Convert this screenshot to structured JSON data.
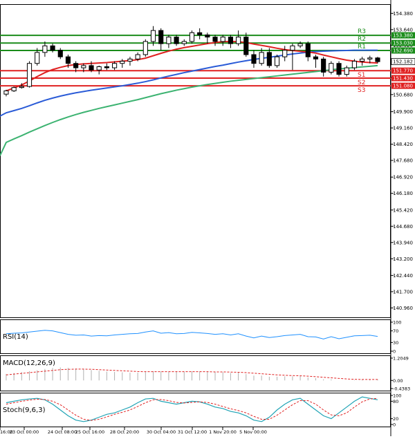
{
  "chart_data": {
    "type": "candlestick",
    "main": {
      "ylim": [
        140.5,
        154.8
      ],
      "y_ticks": [
        "154.380",
        "153.640",
        "152.920",
        "152.182",
        "151.460",
        "150.680",
        "149.900",
        "149.160",
        "148.420",
        "147.680",
        "146.920",
        "146.180",
        "145.420",
        "144.680",
        "143.940",
        "143.200",
        "142.440",
        "141.700",
        "140.960"
      ],
      "x_ticks": [
        "16:00",
        "23 Oct 00:00",
        "24 Oct 08:00",
        "25 Oct 16:00",
        "28 Oct 20:00",
        "30 Oct 04:00",
        "31 Oct 12:00",
        "1 Nov 20:00",
        "5 Nov 00:00"
      ],
      "current_price": "152.182",
      "levels": [
        {
          "label": "R3",
          "value": 153.38,
          "price_tag": "153.380",
          "color": "#1a8c1a"
        },
        {
          "label": "R2",
          "value": 153.03,
          "price_tag": "153.030",
          "color": "#1a8c1a"
        },
        {
          "label": "R1",
          "value": 152.69,
          "price_tag": "152.690",
          "color": "#1a8c1a"
        },
        {
          "label": "S1",
          "value": 151.77,
          "price_tag": "151.770",
          "color": "#e02020"
        },
        {
          "label": "S2",
          "value": 151.43,
          "price_tag": "151.430",
          "color": "#e02020"
        },
        {
          "label": "S3",
          "value": 151.08,
          "price_tag": "151.080",
          "color": "#e02020"
        }
      ],
      "candles": [
        [
          150.7,
          150.9,
          150.6,
          150.85
        ],
        [
          150.85,
          151.05,
          150.8,
          151.0
        ],
        [
          151.0,
          151.2,
          150.95,
          151.05
        ],
        [
          151.05,
          152.2,
          151.0,
          152.1
        ],
        [
          152.1,
          152.8,
          152.0,
          152.6
        ],
        [
          152.6,
          153.1,
          152.4,
          152.9
        ],
        [
          152.9,
          153.0,
          152.6,
          152.7
        ],
        [
          152.7,
          152.8,
          152.3,
          152.4
        ],
        [
          152.4,
          152.5,
          151.9,
          152.1
        ],
        [
          152.1,
          152.2,
          151.7,
          151.9
        ],
        [
          151.9,
          152.1,
          151.7,
          152.0
        ],
        [
          152.0,
          152.2,
          151.7,
          151.8
        ],
        [
          151.8,
          152.0,
          151.6,
          151.95
        ],
        [
          151.95,
          152.1,
          151.8,
          151.9
        ],
        [
          151.9,
          152.2,
          151.8,
          152.1
        ],
        [
          152.1,
          152.3,
          151.9,
          152.2
        ],
        [
          152.2,
          152.4,
          152.0,
          152.3
        ],
        [
          152.3,
          152.6,
          152.2,
          152.5
        ],
        [
          152.5,
          153.2,
          152.4,
          153.1
        ],
        [
          153.1,
          153.8,
          152.9,
          153.6
        ],
        [
          153.6,
          153.7,
          152.7,
          153.0
        ],
        [
          153.0,
          153.4,
          152.8,
          153.3
        ],
        [
          153.3,
          153.4,
          152.9,
          153.0
        ],
        [
          153.0,
          153.2,
          152.9,
          153.1
        ],
        [
          153.1,
          153.6,
          153.0,
          153.5
        ],
        [
          153.5,
          153.7,
          153.2,
          153.4
        ],
        [
          153.4,
          153.5,
          153.0,
          153.3
        ],
        [
          153.3,
          153.4,
          152.9,
          153.1
        ],
        [
          153.1,
          153.4,
          152.9,
          153.3
        ],
        [
          153.3,
          153.4,
          152.8,
          153.0
        ],
        [
          153.0,
          153.6,
          152.9,
          153.3
        ],
        [
          153.3,
          153.5,
          152.4,
          152.5
        ],
        [
          152.5,
          152.7,
          151.9,
          152.1
        ],
        [
          152.1,
          152.8,
          152.0,
          152.6
        ],
        [
          152.6,
          152.8,
          151.9,
          152.0
        ],
        [
          152.0,
          152.5,
          151.9,
          152.4
        ],
        [
          152.4,
          152.9,
          152.2,
          152.7
        ],
        [
          152.7,
          153.0,
          151.8,
          152.9
        ],
        [
          152.9,
          153.1,
          152.8,
          153.0
        ],
        [
          153.0,
          153.1,
          152.2,
          152.4
        ],
        [
          152.4,
          152.5,
          151.9,
          152.3
        ],
        [
          152.3,
          152.4,
          151.5,
          151.7
        ],
        [
          151.7,
          152.2,
          151.6,
          152.1
        ],
        [
          152.1,
          152.2,
          151.5,
          151.6
        ],
        [
          151.6,
          152.0,
          151.5,
          151.9
        ],
        [
          151.9,
          152.3,
          151.8,
          152.2
        ],
        [
          152.2,
          152.4,
          152.0,
          152.3
        ],
        [
          152.3,
          152.45,
          152.1,
          152.35
        ],
        [
          152.35,
          152.4,
          152.1,
          152.18
        ]
      ],
      "ma_fast": [
        150.85,
        150.98,
        151.12,
        151.3,
        151.5,
        151.68,
        151.82,
        151.92,
        152.0,
        152.05,
        152.08,
        152.1,
        152.12,
        152.14,
        152.17,
        152.2,
        152.23,
        152.27,
        152.34,
        152.45,
        152.56,
        152.66,
        152.75,
        152.82,
        152.88,
        152.94,
        153.0,
        153.05,
        153.09,
        153.1,
        153.09,
        153.05,
        152.98,
        152.92,
        152.86,
        152.79,
        152.73,
        152.69,
        152.65,
        152.62,
        152.57,
        152.48,
        152.4,
        152.32,
        152.25,
        152.2,
        152.16,
        152.14,
        152.12
      ],
      "ma_mid": [
        149.85,
        149.95,
        150.05,
        150.17,
        150.3,
        150.42,
        150.52,
        150.61,
        150.69,
        150.76,
        150.82,
        150.88,
        150.93,
        150.98,
        151.03,
        151.08,
        151.14,
        151.2,
        151.27,
        151.35,
        151.44,
        151.52,
        151.6,
        151.68,
        151.75,
        151.82,
        151.89,
        151.96,
        152.02,
        152.09,
        152.16,
        152.22,
        152.28,
        152.33,
        152.38,
        152.43,
        152.48,
        152.53,
        152.57,
        152.61,
        152.64,
        152.66,
        152.67,
        152.68,
        152.69,
        152.7,
        152.7,
        152.7,
        152.7
      ],
      "ma_slow": [
        148.5,
        148.66,
        148.81,
        148.97,
        149.12,
        149.27,
        149.41,
        149.54,
        149.66,
        149.77,
        149.87,
        149.96,
        150.05,
        150.13,
        150.21,
        150.29,
        150.37,
        150.45,
        150.54,
        150.63,
        150.72,
        150.8,
        150.88,
        150.95,
        151.02,
        151.08,
        151.14,
        151.19,
        151.24,
        151.29,
        151.33,
        151.37,
        151.41,
        151.45,
        151.49,
        151.53,
        151.57,
        151.61,
        151.65,
        151.69,
        151.73,
        151.77,
        151.81,
        151.85,
        151.88,
        151.91,
        151.94,
        151.97,
        152.0
      ]
    },
    "rsi": {
      "label": "RSI(14)",
      "ticks": [
        "100",
        "70",
        "30",
        "0"
      ],
      "ylim": [
        0,
        100
      ],
      "values": [
        60,
        62,
        63,
        66,
        69,
        72,
        70,
        64,
        58,
        55,
        56,
        52,
        54,
        53,
        56,
        58,
        60,
        61,
        66,
        70,
        62,
        64,
        60,
        61,
        65,
        63,
        61,
        58,
        60,
        56,
        60,
        52,
        46,
        52,
        47,
        50,
        54,
        56,
        58,
        50,
        49,
        42,
        50,
        43,
        48,
        53,
        54,
        55,
        51
      ]
    },
    "macd": {
      "label": "MACD(12,26,9)",
      "ticks": [
        "1.2049",
        "0.00",
        "-0.4383"
      ],
      "ylim": [
        -0.4383,
        1.2049
      ],
      "histogram": [
        0.35,
        0.4,
        0.45,
        0.5,
        0.55,
        0.62,
        0.68,
        0.7,
        0.68,
        0.64,
        0.6,
        0.56,
        0.52,
        0.48,
        0.46,
        0.44,
        0.42,
        0.42,
        0.45,
        0.5,
        0.48,
        0.48,
        0.46,
        0.46,
        0.48,
        0.48,
        0.46,
        0.44,
        0.44,
        0.4,
        0.42,
        0.34,
        0.26,
        0.26,
        0.2,
        0.2,
        0.22,
        0.22,
        0.24,
        0.16,
        0.12,
        0.06,
        0.06,
        0.0,
        0.0,
        0.02,
        0.04,
        0.06,
        0.06
      ],
      "signal": [
        0.3,
        0.34,
        0.38,
        0.42,
        0.46,
        0.5,
        0.54,
        0.58,
        0.6,
        0.61,
        0.61,
        0.6,
        0.58,
        0.56,
        0.54,
        0.52,
        0.5,
        0.48,
        0.47,
        0.47,
        0.47,
        0.47,
        0.47,
        0.47,
        0.47,
        0.47,
        0.47,
        0.46,
        0.46,
        0.45,
        0.44,
        0.42,
        0.39,
        0.36,
        0.33,
        0.3,
        0.28,
        0.26,
        0.25,
        0.23,
        0.2,
        0.17,
        0.14,
        0.11,
        0.08,
        0.06,
        0.05,
        0.05,
        0.05
      ]
    },
    "stoch": {
      "label": "Stoch(9,6,3)",
      "ticks": [
        "100",
        "80",
        "20",
        "0"
      ],
      "ylim": [
        0,
        100
      ],
      "k": [
        75,
        80,
        85,
        88,
        90,
        85,
        70,
        50,
        30,
        15,
        10,
        15,
        25,
        35,
        40,
        50,
        60,
        75,
        88,
        90,
        80,
        75,
        70,
        75,
        80,
        78,
        70,
        60,
        55,
        45,
        40,
        30,
        15,
        10,
        25,
        50,
        70,
        85,
        90,
        70,
        50,
        30,
        20,
        40,
        60,
        80,
        95,
        90,
        85
      ],
      "d": [
        70,
        75,
        80,
        84,
        87,
        86,
        80,
        68,
        50,
        32,
        18,
        14,
        18,
        26,
        35,
        42,
        50,
        62,
        75,
        85,
        86,
        82,
        76,
        74,
        76,
        78,
        76,
        70,
        62,
        54,
        48,
        40,
        28,
        18,
        18,
        32,
        50,
        68,
        82,
        82,
        70,
        50,
        33,
        30,
        40,
        60,
        78,
        88,
        90
      ]
    }
  }
}
